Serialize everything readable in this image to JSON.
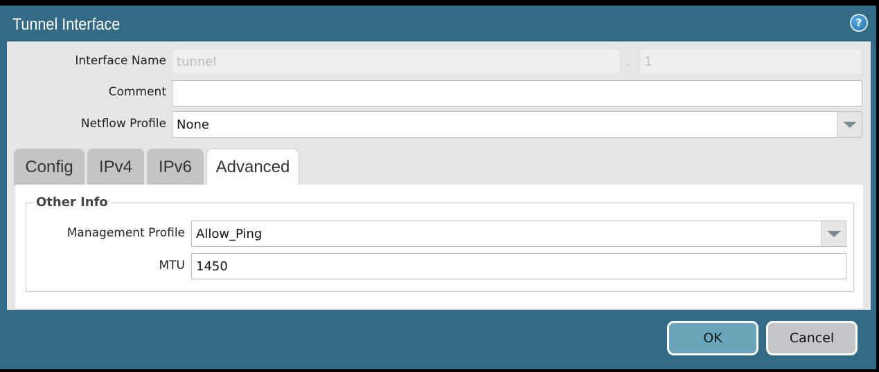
{
  "dialog": {
    "title": "Tunnel Interface",
    "help_icon": "help-icon"
  },
  "form": {
    "interface_name_label": "Interface Name",
    "interface_name_value": "tunnel",
    "separator": ".",
    "interface_suffix": "1",
    "comment_label": "Comment",
    "comment_value": "",
    "netflow_label": "Netflow Profile",
    "netflow_value": "None"
  },
  "tabs": [
    {
      "label": "Config"
    },
    {
      "label": "IPv4"
    },
    {
      "label": "IPv6"
    },
    {
      "label": "Advanced",
      "active": true
    }
  ],
  "advanced": {
    "section_title": "Other Info",
    "mgmt_label": "Management Profile",
    "mgmt_value": "Allow_Ping",
    "mtu_label": "MTU",
    "mtu_value": "1450"
  },
  "footer": {
    "ok_label": "OK",
    "cancel_label": "Cancel"
  },
  "colors": {
    "titlebar": "#336a86",
    "ok_button": "#6aa5bb",
    "cancel_button": "#c4c6ca"
  }
}
